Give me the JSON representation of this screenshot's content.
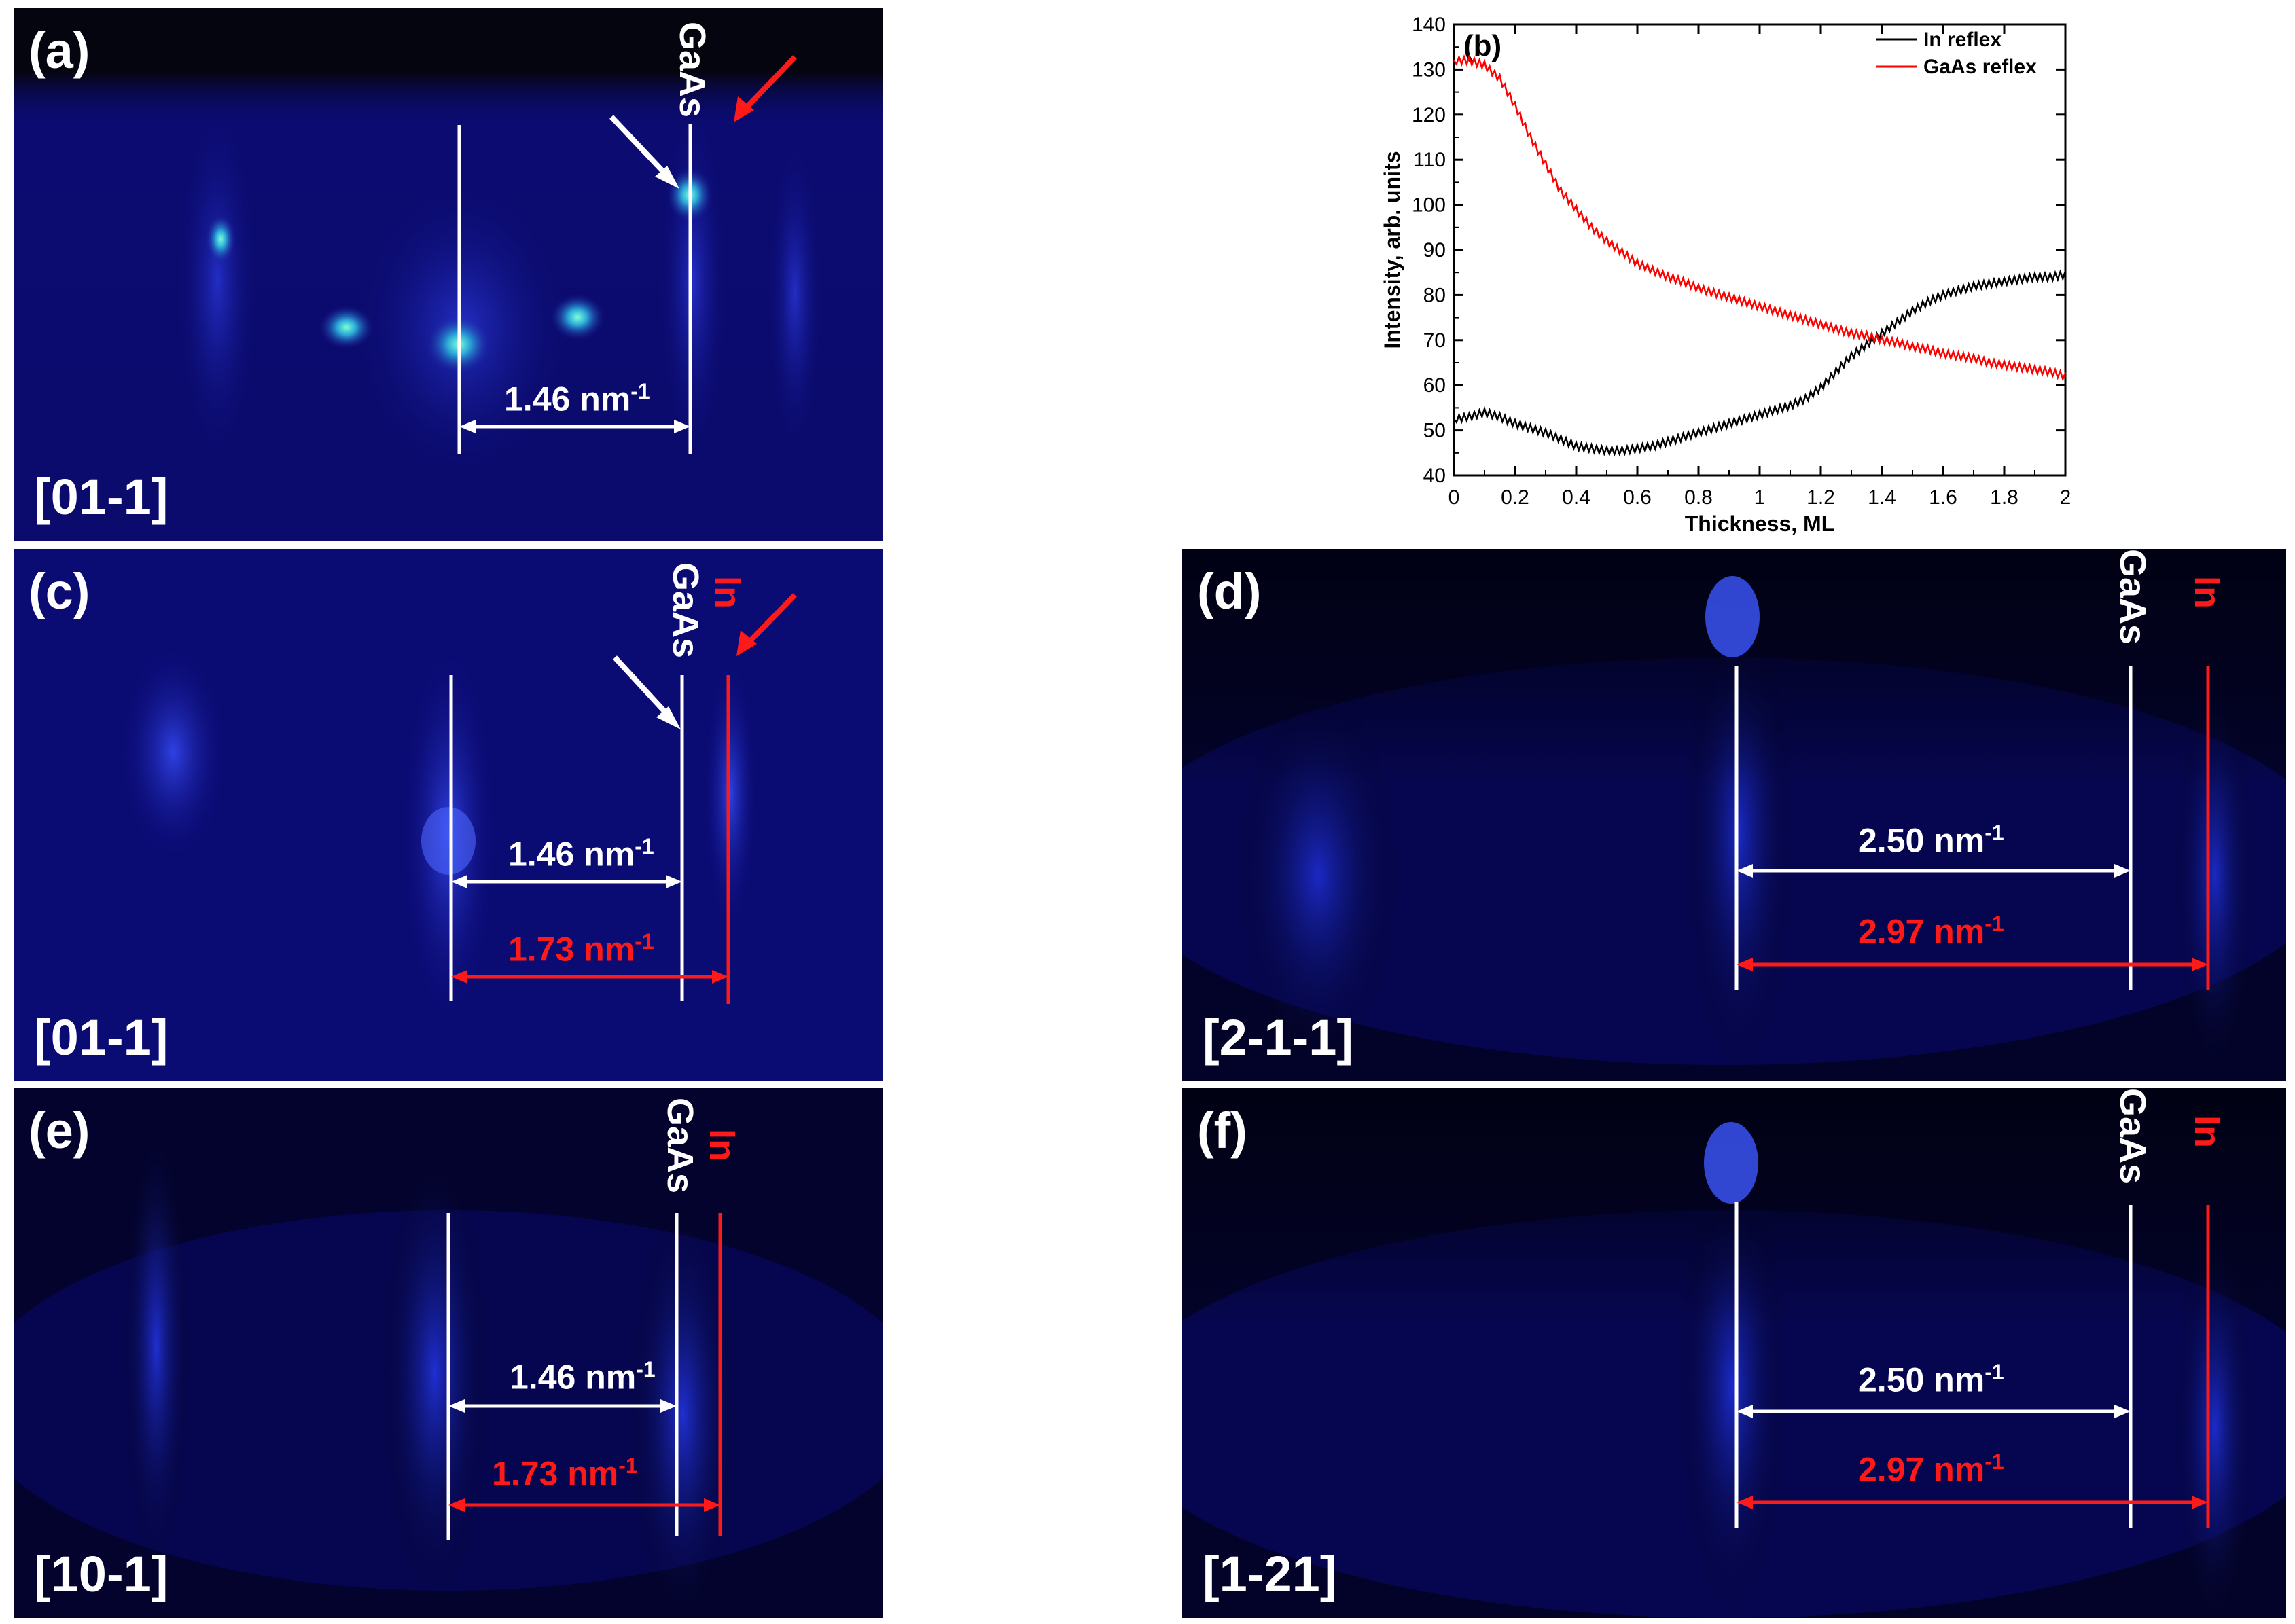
{
  "panels": {
    "a": {
      "label": "(a)",
      "direction": "[01-1]",
      "gaas": "GaAs",
      "spacing_gaas": "1.46 nm",
      "unit_exp": "-1"
    },
    "c": {
      "label": "(c)",
      "direction": "[01-1]",
      "gaas": "GaAs",
      "in": "In",
      "spacing_gaas": "1.46 nm",
      "spacing_in": "1.73 nm",
      "unit_exp": "-1"
    },
    "d": {
      "label": "(d)",
      "direction": "[2-1-1]",
      "gaas": "GaAs",
      "in": "In",
      "spacing_gaas": "2.50 nm",
      "spacing_in": "2.97 nm",
      "unit_exp": "-1"
    },
    "e": {
      "label": "(e)",
      "direction": "[10-1]",
      "gaas": "GaAs",
      "in": "In",
      "spacing_gaas": "1.46 nm",
      "spacing_in": "1.73 nm",
      "unit_exp": "-1"
    },
    "f": {
      "label": "(f)",
      "direction": "[1-21]",
      "gaas": "GaAs",
      "in": "In",
      "spacing_gaas": "2.50 nm",
      "spacing_in": "2.97 nm",
      "unit_exp": "-1"
    }
  },
  "colors": {
    "white_line": "#ffffff",
    "red_line": "#ff1a1a",
    "in_series": "#000000",
    "gaas_series": "#ff0000"
  },
  "chart_data": {
    "type": "line",
    "panel_label": "(b)",
    "title": "",
    "xlabel": "Thickness, ML",
    "ylabel": "Intensity, arb. units",
    "xlim": [
      0,
      2
    ],
    "ylim": [
      40,
      140
    ],
    "xticks": [
      0,
      0.2,
      0.4,
      0.6,
      0.8,
      1,
      1.2,
      1.4,
      1.6,
      1.8,
      2
    ],
    "xtick_labels": [
      "0",
      "0.2",
      "0.4",
      "0.6",
      "0.8",
      "1",
      "1.2",
      "1.4",
      "1.6",
      "1.8",
      "2"
    ],
    "yticks": [
      40,
      50,
      60,
      70,
      80,
      90,
      100,
      110,
      120,
      130,
      140
    ],
    "ytick_labels": [
      "40",
      "50",
      "60",
      "70",
      "80",
      "90",
      "100",
      "110",
      "120",
      "130",
      "140"
    ],
    "legend_position": "top-right",
    "series": [
      {
        "name": "In reflex",
        "color": "#000000",
        "x": [
          0,
          0.05,
          0.1,
          0.15,
          0.2,
          0.25,
          0.3,
          0.35,
          0.4,
          0.45,
          0.5,
          0.55,
          0.6,
          0.65,
          0.7,
          0.75,
          0.8,
          0.85,
          0.9,
          0.95,
          1.0,
          1.05,
          1.1,
          1.15,
          1.2,
          1.25,
          1.3,
          1.35,
          1.4,
          1.45,
          1.5,
          1.55,
          1.6,
          1.65,
          1.7,
          1.75,
          1.8,
          1.85,
          1.9,
          1.95,
          2.0
        ],
        "y": [
          52.5,
          53,
          54,
          53,
          51.5,
          50.5,
          49.5,
          48,
          46.5,
          46,
          45.5,
          45.5,
          46,
          46.5,
          47.5,
          48.5,
          49.5,
          50.5,
          51.5,
          52.5,
          53.5,
          54.5,
          55.5,
          57,
          59.5,
          63,
          66.5,
          69,
          71.5,
          74,
          76.5,
          78.5,
          80,
          81,
          82,
          82.5,
          83,
          83.5,
          84,
          84,
          84.5
        ]
      },
      {
        "name": "GaAs reflex",
        "color": "#ff0000",
        "x": [
          0,
          0.05,
          0.1,
          0.15,
          0.2,
          0.25,
          0.3,
          0.35,
          0.4,
          0.45,
          0.5,
          0.55,
          0.6,
          0.65,
          0.7,
          0.75,
          0.8,
          0.85,
          0.9,
          0.95,
          1.0,
          1.05,
          1.1,
          1.15,
          1.2,
          1.25,
          1.3,
          1.35,
          1.4,
          1.45,
          1.5,
          1.55,
          1.6,
          1.65,
          1.7,
          1.75,
          1.8,
          1.85,
          1.9,
          1.95,
          2.0
        ],
        "y": [
          132,
          132,
          131,
          128,
          122,
          115,
          109,
          103,
          99,
          95,
          92,
          89.5,
          87,
          85.5,
          84,
          83,
          81.5,
          80.5,
          79.5,
          78.5,
          77.5,
          76.5,
          75.5,
          74.5,
          73.5,
          72.5,
          71.5,
          71,
          70,
          69.5,
          68.5,
          68,
          67,
          66.5,
          66,
          65,
          64.5,
          64,
          63.5,
          63,
          62
        ]
      }
    ]
  }
}
